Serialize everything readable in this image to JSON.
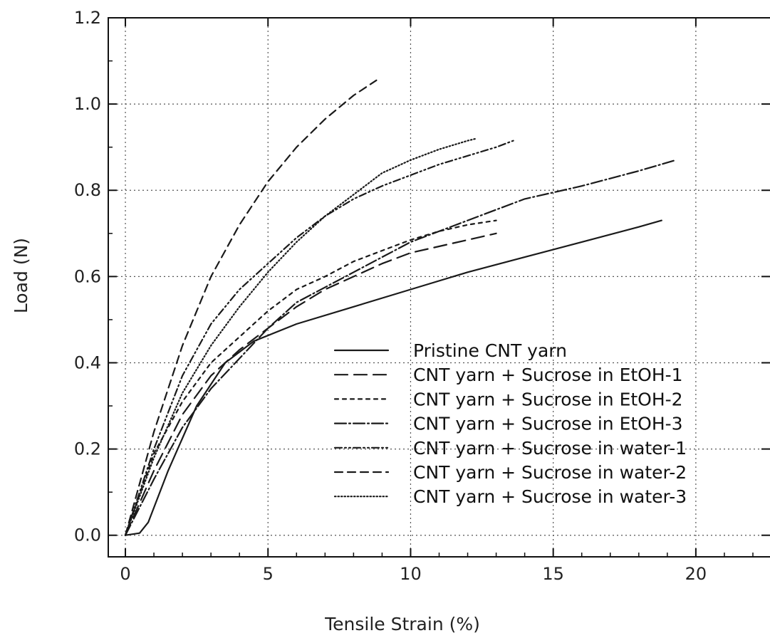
{
  "chart_data": {
    "type": "line",
    "title": "",
    "xlabel": "Tensile Strain (%)",
    "ylabel": "Load (N)",
    "xlim": [
      -0.6,
      22.6
    ],
    "ylim": [
      -0.05,
      1.2
    ],
    "xticks": [
      0,
      5,
      10,
      15,
      20
    ],
    "xtick_labels": [
      "0",
      "5",
      "10",
      "15",
      "20"
    ],
    "yticks": [
      0.0,
      0.2,
      0.4,
      0.6,
      0.8,
      1.0,
      1.2
    ],
    "ytick_labels": [
      "0.0",
      "0.2",
      "0.4",
      "0.6",
      "0.8",
      "1.0",
      "1.2"
    ],
    "grid": true,
    "legend_position": "bottom-right",
    "series": [
      {
        "name": "Pristine CNT yarn",
        "style": "solid",
        "x": [
          0,
          0.5,
          0.8,
          1.5,
          2.5,
          3.5,
          4.5,
          6,
          8,
          10,
          12,
          14,
          16,
          18,
          18.8
        ],
        "y": [
          0,
          0.005,
          0.03,
          0.15,
          0.3,
          0.4,
          0.45,
          0.49,
          0.53,
          0.57,
          0.61,
          0.645,
          0.68,
          0.715,
          0.73
        ]
      },
      {
        "name": "CNT yarn + Sucrose in EtOH-1",
        "style": "long-dash",
        "x": [
          0,
          1,
          2,
          3,
          4,
          5,
          6,
          7,
          8,
          9,
          10,
          11,
          12,
          13
        ],
        "y": [
          0,
          0.15,
          0.28,
          0.37,
          0.43,
          0.48,
          0.53,
          0.57,
          0.6,
          0.63,
          0.655,
          0.67,
          0.685,
          0.7
        ]
      },
      {
        "name": "CNT yarn + Sucrose in EtOH-2",
        "style": "short-dash",
        "x": [
          0,
          1,
          2,
          3,
          4,
          5,
          6,
          7,
          8,
          9,
          10,
          11,
          12,
          13
        ],
        "y": [
          0,
          0.19,
          0.31,
          0.4,
          0.46,
          0.52,
          0.57,
          0.6,
          0.635,
          0.66,
          0.685,
          0.705,
          0.72,
          0.73
        ]
      },
      {
        "name": "CNT yarn + Sucrose in EtOH-3",
        "style": "dash-dot",
        "x": [
          0,
          1,
          2,
          3,
          4,
          5,
          6,
          8,
          10,
          12,
          14,
          16,
          18,
          19.3
        ],
        "y": [
          0,
          0.13,
          0.25,
          0.34,
          0.41,
          0.48,
          0.54,
          0.61,
          0.68,
          0.73,
          0.78,
          0.81,
          0.845,
          0.87
        ]
      },
      {
        "name": "CNT yarn + Sucrose in water-1",
        "style": "dash-dot-dot",
        "x": [
          0,
          1,
          2,
          3,
          4,
          5,
          6,
          7,
          8,
          9,
          10,
          11,
          12,
          13,
          13.6
        ],
        "y": [
          0,
          0.2,
          0.37,
          0.49,
          0.57,
          0.63,
          0.69,
          0.74,
          0.78,
          0.81,
          0.835,
          0.86,
          0.88,
          0.9,
          0.915
        ]
      },
      {
        "name": "CNT yarn + Sucrose in water-2",
        "style": "medium-dash",
        "x": [
          0,
          1,
          2,
          3,
          4,
          5,
          6,
          7,
          8,
          8.8
        ],
        "y": [
          0,
          0.24,
          0.44,
          0.6,
          0.72,
          0.82,
          0.9,
          0.965,
          1.02,
          1.055
        ]
      },
      {
        "name": "CNT yarn + Sucrose in water-3",
        "style": "dotted",
        "x": [
          0,
          1,
          2,
          3,
          4,
          5,
          6,
          7,
          8,
          9,
          10,
          11,
          12,
          12.3
        ],
        "y": [
          0,
          0.18,
          0.33,
          0.44,
          0.53,
          0.61,
          0.68,
          0.74,
          0.79,
          0.84,
          0.87,
          0.895,
          0.915,
          0.92
        ]
      }
    ]
  }
}
